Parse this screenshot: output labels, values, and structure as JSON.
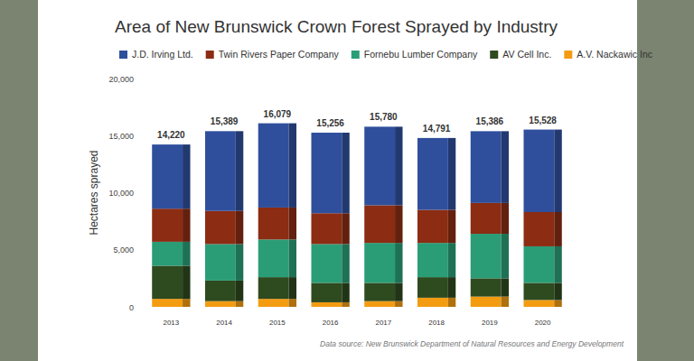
{
  "chart_data": {
    "type": "bar",
    "title": "Area of New Brunswick Crown Forest Sprayed by Industry",
    "y_label": "Hectares sprayed",
    "source": "Data source: New Brunswick Department of Natural Resources and Energy Development",
    "categories": [
      "2013",
      "2014",
      "2015",
      "2016",
      "2017",
      "2018",
      "2019",
      "2020"
    ],
    "stacked": true,
    "grid": false,
    "legend": "top",
    "series": [
      {
        "name": "A.V. Nackawic Inc",
        "color": "#f39c12",
        "values": [
          700,
          500,
          700,
          400,
          500,
          800,
          900,
          600
        ]
      },
      {
        "name": "AV Cell Inc.",
        "color": "#2e4a1f",
        "values": [
          2900,
          1800,
          1900,
          1700,
          1600,
          1800,
          1600,
          1500
        ]
      },
      {
        "name": "Fornebu Lumber Company",
        "color": "#2a9d76",
        "values": [
          2100,
          3200,
          3300,
          3400,
          3500,
          3000,
          3900,
          3200
        ]
      },
      {
        "name": "Twin Rivers Paper Company",
        "color": "#8b2c13",
        "values": [
          2900,
          2900,
          2800,
          2700,
          3300,
          2900,
          2700,
          3000
        ]
      },
      {
        "name": "J.D. Irving Ltd.",
        "color": "#2f4f9c",
        "values": [
          5620,
          6989,
          7379,
          7056,
          6880,
          6291,
          6286,
          7228
        ]
      }
    ],
    "totals": [
      14220,
      15389,
      16079,
      15256,
      15780,
      14791,
      15386,
      15528
    ],
    "total_labels": [
      "14,220",
      "15,389",
      "16,079",
      "15,256",
      "15,780",
      "14,791",
      "15,386",
      "15,528"
    ],
    "ylim": [
      0,
      20000
    ],
    "yticks": [
      0,
      {
        "value": 5000,
        "label": "5,000"
      },
      {
        "value": 10000,
        "label": "10,000"
      },
      {
        "value": 15000,
        "label": "15,000"
      },
      {
        "value": 20000,
        "label": "20,000"
      }
    ]
  }
}
